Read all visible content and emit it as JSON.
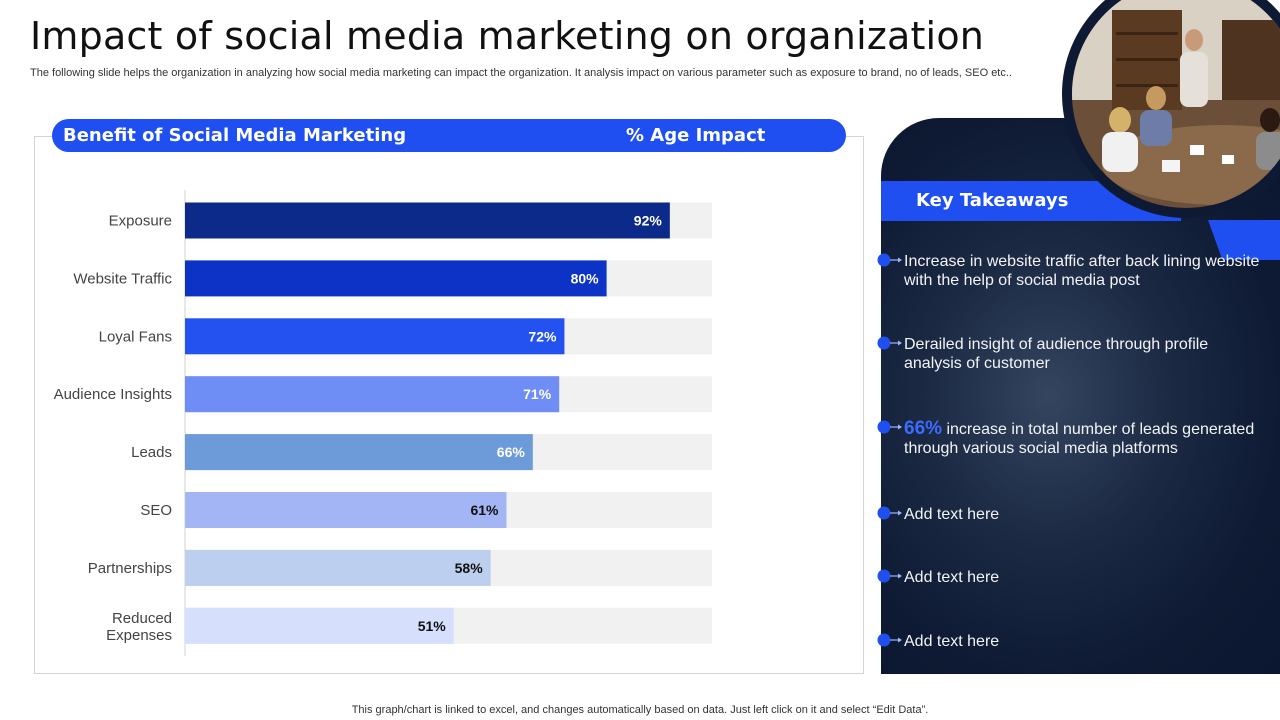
{
  "title": "Impact of social media marketing on organization",
  "subtitle": "The following slide helps the organization in analyzing how social media marketing can impact the organization. It analysis impact on various parameter such as exposure to brand, no of leads, SEO etc..",
  "table_header": {
    "col1": "Benefit of Social Media Marketing",
    "col2": "% Age Impact"
  },
  "chart_data": {
    "type": "bar",
    "orientation": "horizontal",
    "categories": [
      "Exposure",
      "Website Traffic",
      "Loyal Fans",
      "Audience Insights",
      "Leads",
      "SEO",
      "Partnerships",
      "Reduced Expenses"
    ],
    "values": [
      92,
      80,
      72,
      71,
      66,
      61,
      58,
      51
    ],
    "value_labels": [
      "92%",
      "80%",
      "72%",
      "71%",
      "66%",
      "61%",
      "58%",
      "51%"
    ],
    "xlim": [
      0,
      100
    ],
    "bar_colors": [
      "#0b2a8a",
      "#0d33c6",
      "#2352f0",
      "#6e8df5",
      "#6d9ad8",
      "#a3b5f5",
      "#bccfee",
      "#d6dffc"
    ],
    "label_colors": [
      "#ffffff",
      "#ffffff",
      "#ffffff",
      "#ffffff",
      "#ffffff",
      "#111111",
      "#111111",
      "#111111"
    ],
    "track_color": "#f1f1f1",
    "grid": false,
    "legend": "none"
  },
  "takeaways": {
    "heading": "Key Takeaways",
    "items": [
      {
        "highlight": "",
        "text": "Increase  in website traffic after back lining website with the help of social media post"
      },
      {
        "highlight": "",
        "text": "Derailed insight of audience through profile analysis of customer"
      },
      {
        "highlight": "66%",
        "text": " increase in total number of leads generated through various social media platforms"
      },
      {
        "highlight": "",
        "text": "Add text here"
      },
      {
        "highlight": "",
        "text": "Add text here"
      },
      {
        "highlight": "",
        "text": "Add text here"
      }
    ]
  },
  "footer": "This graph/chart is linked to excel,  and changes automatically based on data. Just left click on it and select “Edit Data”.",
  "colors": {
    "accent": "#1f4ff0",
    "panel_dark": "#0e1a33",
    "highlight_text": "#3c6bff"
  }
}
